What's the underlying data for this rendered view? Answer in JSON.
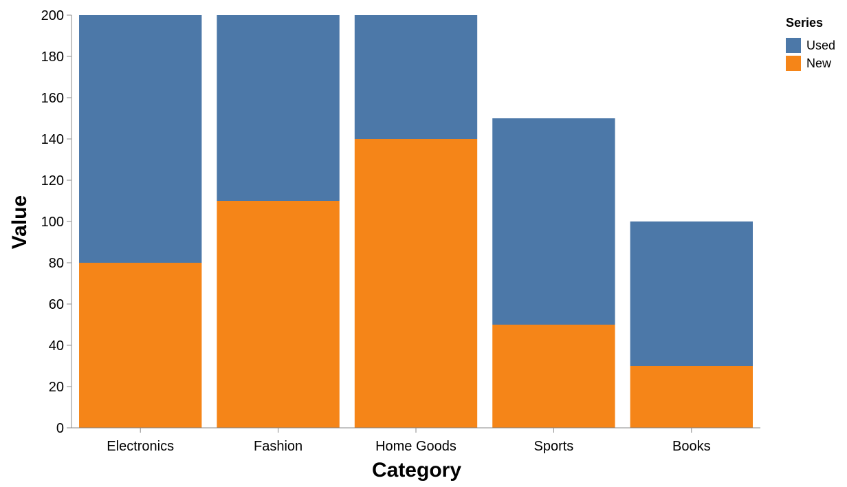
{
  "chart_data": {
    "type": "bar",
    "stacked": true,
    "categories": [
      "Electronics",
      "Fashion",
      "Home Goods",
      "Sports",
      "Books"
    ],
    "series": [
      {
        "name": "New",
        "values": [
          80,
          110,
          140,
          50,
          30
        ],
        "color": "#f58518"
      },
      {
        "name": "Used",
        "values": [
          120,
          90,
          60,
          100,
          70
        ],
        "color": "#4c78a8"
      }
    ],
    "xlabel": "Category",
    "ylabel": "Value",
    "ylim": [
      0,
      200
    ],
    "yticks": [
      0,
      20,
      40,
      60,
      80,
      100,
      120,
      140,
      160,
      180,
      200
    ],
    "grid": false,
    "legend": {
      "title": "Series",
      "position": "top-right",
      "entries": [
        {
          "name": "Used",
          "color": "#4c78a8"
        },
        {
          "name": "New",
          "color": "#f58518"
        }
      ]
    }
  }
}
